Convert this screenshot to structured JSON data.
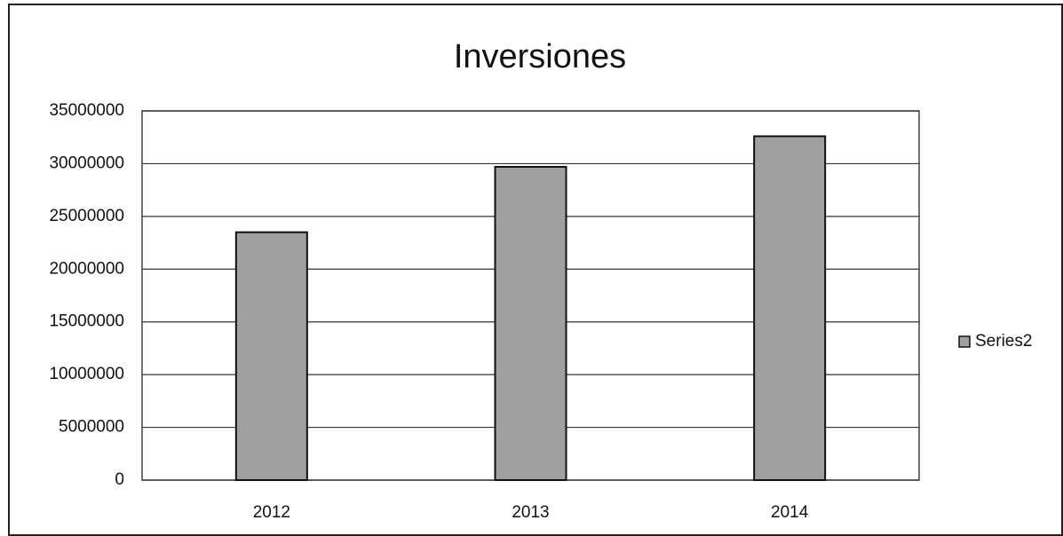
{
  "chart_data": {
    "type": "bar",
    "title": "Inversiones",
    "categories": [
      "2012",
      "2013",
      "2014"
    ],
    "series": [
      {
        "name": "Series2",
        "color": "#a0a0a0",
        "values": [
          23500000,
          29700000,
          32600000
        ]
      }
    ],
    "ylim": [
      0,
      35000000
    ],
    "yticks": [
      0,
      5000000,
      10000000,
      15000000,
      20000000,
      25000000,
      30000000,
      35000000
    ],
    "grid": true,
    "legend": "right"
  }
}
